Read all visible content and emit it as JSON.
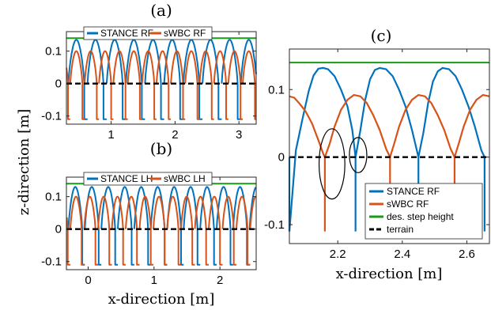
{
  "figure": {
    "shared_ylabel": "z-direction [m]",
    "shared_xlabel": "x-direction [m]"
  },
  "colors": {
    "stance": "#0072BD",
    "swbc": "#D95319",
    "step_height": "#1a9a1a",
    "terrain": "#000000"
  },
  "chart_data": [
    {
      "id": "a",
      "type": "line",
      "title": "(a)",
      "xlabel": "",
      "ylabel": "",
      "xlim": [
        0.3,
        3.27
      ],
      "ylim": [
        -0.125,
        0.16
      ],
      "xticks": [
        1,
        2,
        3
      ],
      "yticks": [
        0.1,
        0,
        -0.1
      ],
      "ytick_labels": [
        "0.1",
        "0",
        "-0.1"
      ],
      "legend": {
        "position": "top",
        "orientation": "horizontal",
        "entries": [
          "STANCE RF",
          "sWBC RF"
        ]
      },
      "series": [
        {
          "name": "STANCE RF",
          "style": "stance",
          "stride": 0.3,
          "first_liftoff": 0.33,
          "peak": 0.135,
          "swing": 0.25,
          "dip": -0.11
        },
        {
          "name": "sWBC RF",
          "style": "swbc",
          "stride": 0.225,
          "first_liftoff": 0.36,
          "peak": 0.1,
          "swing": 0.19,
          "dip": -0.11
        },
        {
          "name": "des. step height",
          "style": "step_height",
          "y": 0.14
        },
        {
          "name": "terrain",
          "style": "terrain",
          "y": 0
        }
      ]
    },
    {
      "id": "b",
      "type": "line",
      "title": "(b)",
      "xlabel": "x-direction [m]",
      "ylabel": "",
      "xlim": [
        -0.33,
        2.55
      ],
      "ylim": [
        -0.125,
        0.16
      ],
      "xticks": [
        0,
        1,
        2
      ],
      "yticks": [
        0.1,
        0,
        -0.1
      ],
      "ytick_labels": [
        "0.1",
        "0",
        "-0.1"
      ],
      "legend": {
        "position": "top",
        "orientation": "horizontal",
        "entries": [
          "STANCE LH",
          "sWBC LH"
        ]
      },
      "series": [
        {
          "name": "STANCE LH",
          "style": "stance",
          "stride": 0.25,
          "first_liftoff": -0.3,
          "peak": 0.13,
          "swing": 0.21,
          "dip": -0.11
        },
        {
          "name": "sWBC LH",
          "style": "swbc",
          "stride": 0.21,
          "first_liftoff": -0.27,
          "peak": 0.1,
          "swing": 0.17,
          "dip": -0.11
        },
        {
          "name": "des. step height",
          "style": "step_height",
          "y": 0.14
        },
        {
          "name": "terrain",
          "style": "terrain",
          "y": 0
        }
      ]
    },
    {
      "id": "c",
      "type": "line",
      "title": "(c)",
      "xlabel": "x-direction [m]",
      "ylabel": "",
      "xlim": [
        2.05,
        2.67
      ],
      "ylim": [
        -0.128,
        0.16
      ],
      "xticks": [
        2.2,
        2.4,
        2.6
      ],
      "yticks": [
        0.1,
        0,
        -0.1
      ],
      "ytick_labels": [
        "0.1",
        "0",
        "-0.1"
      ],
      "legend": {
        "position": "bottom-right",
        "orientation": "vertical",
        "entries": [
          "STANCE RF",
          "sWBC RF",
          "des. step height",
          "terrain"
        ]
      },
      "series": [
        {
          "name": "STANCE RF",
          "style": "stance",
          "segments": [
            {
              "x0": 2.05,
              "x1": 2.255,
              "x": [
                2.05,
                2.07,
                2.09,
                2.11,
                2.125,
                2.14,
                2.155,
                2.17,
                2.19,
                2.21,
                2.23,
                2.245,
                2.255
              ],
              "y": [
                -0.11,
                0.01,
                0.055,
                0.098,
                0.121,
                0.131,
                0.132,
                0.13,
                0.12,
                0.1,
                0.075,
                0.04,
                0.0
              ]
            },
            {
              "x0": 2.255,
              "x1": 2.45,
              "x": [
                2.255,
                2.27,
                2.285,
                2.3,
                2.315,
                2.33,
                2.35,
                2.37,
                2.39,
                2.41,
                2.43,
                2.445,
                2.45
              ],
              "y": [
                0.0,
                0.04,
                0.085,
                0.115,
                0.129,
                0.132,
                0.13,
                0.12,
                0.1,
                0.075,
                0.04,
                0.01,
                0.0
              ]
            },
            {
              "x0": 2.45,
              "x1": 2.655,
              "x": [
                2.45,
                2.465,
                2.48,
                2.495,
                2.51,
                2.525,
                2.545,
                2.565,
                2.585,
                2.605,
                2.625,
                2.645,
                2.655
              ],
              "y": [
                0.0,
                0.035,
                0.08,
                0.112,
                0.127,
                0.132,
                0.13,
                0.12,
                0.1,
                0.075,
                0.045,
                0.01,
                0.0
              ]
            }
          ],
          "dips": [
            [
              2.05,
              -0.11
            ],
            [
              2.255,
              -0.11
            ],
            [
              2.45,
              -0.105
            ],
            [
              2.655,
              -0.11
            ]
          ]
        },
        {
          "name": "sWBC RF",
          "style": "swbc",
          "segments": [
            {
              "x0": 2.05,
              "x1": 2.16,
              "x": [
                2.05,
                2.065,
                2.08,
                2.1,
                2.12,
                2.14,
                2.155,
                2.16
              ],
              "y": [
                0.09,
                0.088,
                0.08,
                0.068,
                0.05,
                0.025,
                0.005,
                0.0
              ]
            },
            {
              "x0": 2.16,
              "x1": 2.362,
              "x": [
                2.16,
                2.175,
                2.19,
                2.21,
                2.23,
                2.25,
                2.27,
                2.29,
                2.31,
                2.33,
                2.35,
                2.362
              ],
              "y": [
                0.0,
                0.02,
                0.045,
                0.07,
                0.085,
                0.092,
                0.09,
                0.08,
                0.062,
                0.04,
                0.012,
                0.0
              ]
            },
            {
              "x0": 2.362,
              "x1": 2.562,
              "x": [
                2.362,
                2.375,
                2.39,
                2.41,
                2.43,
                2.45,
                2.47,
                2.49,
                2.51,
                2.53,
                2.55,
                2.562
              ],
              "y": [
                0.0,
                0.02,
                0.045,
                0.07,
                0.085,
                0.092,
                0.09,
                0.08,
                0.062,
                0.04,
                0.012,
                0.0
              ]
            },
            {
              "x0": 2.562,
              "x1": 2.67,
              "x": [
                2.562,
                2.575,
                2.59,
                2.61,
                2.63,
                2.65,
                2.67
              ],
              "y": [
                0.0,
                0.02,
                0.045,
                0.07,
                0.085,
                0.092,
                0.09
              ]
            }
          ],
          "dips": [
            [
              2.16,
              -0.11
            ],
            [
              2.362,
              -0.045
            ],
            [
              2.562,
              -0.04
            ]
          ]
        },
        {
          "name": "des. step height",
          "style": "step_height",
          "y": 0.14
        },
        {
          "name": "terrain",
          "style": "terrain",
          "y": 0
        }
      ],
      "annotations": [
        {
          "type": "ellipse",
          "cx": 2.182,
          "cy": -0.01,
          "rx": 0.04,
          "ry": 0.052
        },
        {
          "type": "ellipse",
          "cx": 2.263,
          "cy": 0.003,
          "rx": 0.027,
          "ry": 0.026
        }
      ]
    }
  ]
}
